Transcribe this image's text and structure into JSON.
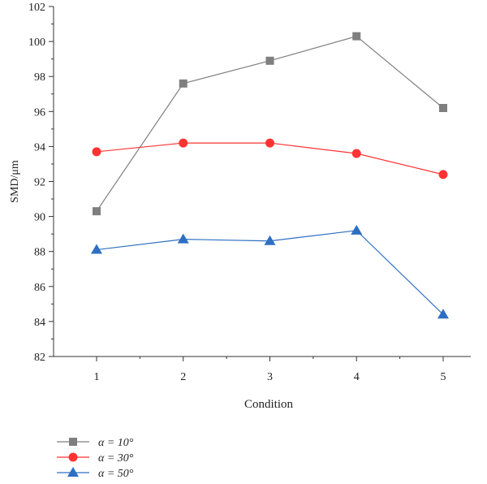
{
  "chart_data": {
    "type": "line",
    "xlabel": "Condition",
    "ylabel": "SMD/μm",
    "categories": [
      "1",
      "2",
      "3",
      "4",
      "5"
    ],
    "ylim": [
      82,
      102
    ],
    "yticks": [
      82,
      84,
      86,
      88,
      90,
      92,
      94,
      96,
      98,
      100,
      102
    ],
    "grid": false,
    "legend_position": "bottom-left",
    "series": [
      {
        "name": "α = 10°",
        "values": [
          90.3,
          97.6,
          98.9,
          100.3,
          96.2
        ],
        "color": "#7f7f7f",
        "marker": "square"
      },
      {
        "name": "α = 30°",
        "values": [
          93.7,
          94.2,
          94.2,
          93.6,
          92.4
        ],
        "color": "#ff3333",
        "marker": "circle"
      },
      {
        "name": "α = 50°",
        "values": [
          88.1,
          88.7,
          88.6,
          89.2,
          84.4
        ],
        "color": "#2e6fc2",
        "marker": "triangle"
      }
    ]
  }
}
